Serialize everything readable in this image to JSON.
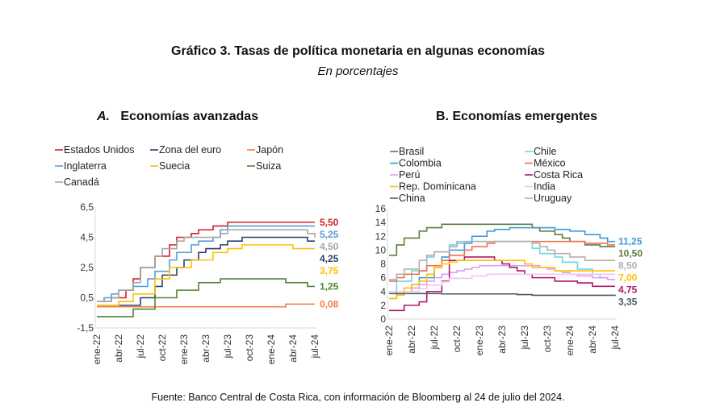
{
  "title": "Gráfico 3. Tasas de política monetaria en algunas economías",
  "subtitle": "En porcentajes",
  "source": "Fuente: Banco Central de Costa Rica, con información de Bloomberg al 24 de julio del 2024.",
  "chart_data": [
    {
      "type": "line",
      "panel": "A.",
      "title": "Economías avanzadas",
      "ylim": [
        -1.5,
        6.5
      ],
      "yticks": [
        "6,5",
        "4,5",
        "2,5",
        "0,5",
        "-1,5"
      ],
      "ytick_values": [
        6.5,
        4.5,
        2.5,
        0.5,
        -1.5
      ],
      "xticks": [
        "ene-22",
        "abr-22",
        "jul-22",
        "oct-22",
        "ene-23",
        "abr-23",
        "jul-23",
        "oct-23",
        "ene-24",
        "abr-24",
        "jul-24"
      ],
      "x": "monthly ene-22 to jul-24",
      "series": [
        {
          "name": "Estados Unidos",
          "color": "#d0212b",
          "end_label": "5,50",
          "values": [
            0.25,
            0.25,
            0.5,
            0.5,
            1,
            1.75,
            2.5,
            2.5,
            3.25,
            3.25,
            4,
            4.5,
            4.5,
            4.75,
            5,
            5,
            5.25,
            5.25,
            5.5,
            5.5,
            5.5,
            5.5,
            5.5,
            5.5,
            5.5,
            5.5,
            5.5,
            5.5,
            5.5,
            5.5,
            5.5
          ]
        },
        {
          "name": "Zona del euro",
          "color": "#2f3f6a",
          "end_label": "4,25",
          "values": [
            0,
            0,
            0,
            0,
            0,
            0,
            0.5,
            0.5,
            1.25,
            2,
            2,
            2.5,
            3,
            3,
            3.5,
            3.75,
            3.75,
            4,
            4.25,
            4.25,
            4.5,
            4.5,
            4.5,
            4.5,
            4.5,
            4.5,
            4.5,
            4.5,
            4.5,
            4.25,
            4.25
          ]
        },
        {
          "name": "Japón",
          "color": "#f08040",
          "end_label": "0,08",
          "values": [
            -0.1,
            -0.1,
            -0.1,
            -0.1,
            -0.1,
            -0.1,
            -0.1,
            -0.1,
            -0.1,
            -0.1,
            -0.1,
            -0.1,
            -0.1,
            -0.1,
            -0.1,
            -0.1,
            -0.1,
            -0.1,
            -0.1,
            -0.1,
            -0.1,
            -0.1,
            -0.1,
            -0.1,
            -0.1,
            -0.1,
            0.08,
            0.08,
            0.08,
            0.08,
            0.08
          ]
        },
        {
          "name": "Inglaterra",
          "color": "#5b9bd5",
          "end_label": "5,25",
          "values": [
            0.25,
            0.5,
            0.75,
            1,
            1,
            1.25,
            1.25,
            1.75,
            2.25,
            2.25,
            3,
            3.5,
            3.5,
            4,
            4.25,
            4.25,
            4.5,
            5,
            5.25,
            5.25,
            5.25,
            5.25,
            5.25,
            5.25,
            5.25,
            5.25,
            5.25,
            5.25,
            5.25,
            5.25,
            5.25
          ]
        },
        {
          "name": "Suecia",
          "color": "#ffc000",
          "end_label": "3,75",
          "values": [
            0,
            0,
            0,
            0.25,
            0.25,
            0.75,
            0.75,
            0.75,
            1.75,
            1.75,
            2.5,
            2.5,
            2.5,
            3,
            3,
            3,
            3.5,
            3.5,
            3.75,
            3.75,
            4,
            4,
            4,
            4,
            4,
            4,
            4,
            3.75,
            3.75,
            3.75,
            3.75
          ]
        },
        {
          "name": "Suiza",
          "color": "#548235",
          "end_label": "1,25",
          "values": [
            -0.75,
            -0.75,
            -0.75,
            -0.75,
            -0.75,
            -0.25,
            -0.25,
            -0.25,
            0.5,
            0.5,
            0.5,
            1,
            1,
            1,
            1.5,
            1.5,
            1.5,
            1.75,
            1.75,
            1.75,
            1.75,
            1.75,
            1.75,
            1.75,
            1.75,
            1.75,
            1.5,
            1.5,
            1.5,
            1.25,
            1.25
          ]
        },
        {
          "name": "Canadá",
          "color": "#a5a5a5",
          "end_label": "4,50",
          "values": [
            0.25,
            0.25,
            0.5,
            1,
            1,
            1.5,
            2.5,
            2.5,
            3.25,
            3.75,
            3.75,
            4.25,
            4.5,
            4.5,
            4.5,
            4.5,
            4.5,
            4.75,
            5,
            5,
            5,
            5,
            5,
            5,
            5,
            5,
            5,
            5,
            5,
            4.75,
            4.5
          ]
        }
      ]
    },
    {
      "type": "line",
      "panel": "B.",
      "title": "Economías emergentes",
      "ylim": [
        0,
        16
      ],
      "yticks": [
        "16",
        "14",
        "12",
        "10",
        "8",
        "6",
        "4",
        "2",
        "0"
      ],
      "ytick_values": [
        16,
        14,
        12,
        10,
        8,
        6,
        4,
        2,
        0
      ],
      "xticks": [
        "ene-22",
        "abr-22",
        "jul-22",
        "oct-22",
        "ene-23",
        "abr-23",
        "jul-23",
        "oct-23",
        "ene-24",
        "abr-24",
        "jul-24"
      ],
      "x": "monthly ene-22 to jul-24",
      "series": [
        {
          "name": "Brasil",
          "color": "#5e7d3c",
          "end_label": "10,50",
          "values": [
            9.25,
            10.75,
            11.75,
            11.75,
            12.75,
            13.25,
            13.25,
            13.75,
            13.75,
            13.75,
            13.75,
            13.75,
            13.75,
            13.75,
            13.75,
            13.75,
            13.75,
            13.75,
            13.75,
            13.25,
            12.75,
            12.75,
            12.25,
            11.75,
            11.25,
            11.25,
            10.75,
            10.75,
            10.5,
            10.5,
            10.5
          ]
        },
        {
          "name": "Chile",
          "color": "#6fd6e6",
          "end_label": "",
          "values": [
            4,
            5.5,
            5.5,
            7,
            7,
            9,
            9.75,
            9.75,
            10.75,
            11.25,
            11.25,
            11.25,
            11.25,
            11.25,
            11.25,
            11.25,
            11.25,
            11.25,
            11.25,
            10.25,
            9.5,
            9.5,
            9,
            8.25,
            8.25,
            7.25,
            7.25,
            6.5,
            6,
            5.75,
            5.75
          ]
        },
        {
          "name": "Colombia",
          "color": "#3a9ad9",
          "end_label": "11,25",
          "values": [
            3,
            4,
            4,
            5,
            6,
            6,
            7.5,
            9,
            10,
            10,
            11,
            12,
            12,
            12.75,
            13,
            13,
            13.25,
            13.25,
            13.25,
            13.25,
            13.25,
            13.25,
            13,
            13,
            12.75,
            12.75,
            12.25,
            12.25,
            11.75,
            11.25,
            11.25
          ]
        },
        {
          "name": "México",
          "color": "#f07050",
          "end_label": "",
          "values": [
            5.5,
            6,
            6.5,
            6.5,
            7,
            7.75,
            7.75,
            8.5,
            9.25,
            9.25,
            10,
            10.5,
            10.5,
            11,
            11.25,
            11.25,
            11.25,
            11.25,
            11.25,
            11.25,
            11.25,
            11.25,
            11.25,
            11.25,
            11.25,
            11.25,
            11,
            11,
            11,
            10.75,
            10.75
          ]
        },
        {
          "name": "Perú",
          "color": "#d9a0f0",
          "end_label": "",
          "values": [
            3,
            3.5,
            4,
            4.5,
            5,
            5.5,
            6,
            6.5,
            6.75,
            7,
            7.25,
            7.5,
            7.75,
            7.75,
            7.75,
            7.75,
            7.75,
            7.75,
            7.75,
            7.75,
            7.5,
            7.25,
            7,
            6.75,
            6.5,
            6.25,
            6.25,
            6,
            6,
            5.75,
            5.75
          ]
        },
        {
          "name": "Costa Rica",
          "color": "#b0176b",
          "end_label": "4,75",
          "values": [
            1.25,
            1.25,
            2,
            2,
            2.5,
            4,
            4,
            5.5,
            8.5,
            8.5,
            9,
            9,
            9,
            9,
            8.5,
            8,
            7.5,
            7,
            6.5,
            6,
            6,
            6,
            5.5,
            5.5,
            5.5,
            5.25,
            5.25,
            4.75,
            4.75,
            4.75,
            4.75
          ]
        },
        {
          "name": "Rep. Dominicana",
          "color": "#ffc000",
          "end_label": "7,00",
          "values": [
            3,
            3.5,
            4.5,
            5,
            5.5,
            6.5,
            7.5,
            8,
            8.25,
            8.5,
            8.5,
            8.5,
            8.5,
            8.5,
            8.5,
            8.5,
            8.5,
            8.5,
            8,
            7.5,
            7.5,
            7.5,
            7,
            7,
            7,
            7,
            7,
            7,
            7,
            7,
            7
          ]
        },
        {
          "name": "India",
          "color": "#f2c4f2",
          "end_label": "",
          "values": [
            4,
            4,
            4,
            4,
            4.4,
            4.9,
            4.9,
            5.4,
            5.9,
            5.9,
            5.9,
            6.25,
            6.25,
            6.5,
            6.5,
            6.5,
            6.5,
            6.5,
            6.5,
            6.5,
            6.5,
            6.5,
            6.5,
            6.5,
            6.5,
            6.5,
            6.5,
            6.5,
            6.5,
            6.5,
            6.5
          ]
        },
        {
          "name": "China",
          "color": "#4a5a60",
          "end_label": "3,35",
          "values": [
            3.7,
            3.7,
            3.7,
            3.7,
            3.7,
            3.7,
            3.7,
            3.65,
            3.65,
            3.65,
            3.65,
            3.65,
            3.65,
            3.65,
            3.65,
            3.65,
            3.65,
            3.55,
            3.55,
            3.45,
            3.45,
            3.45,
            3.45,
            3.45,
            3.45,
            3.45,
            3.45,
            3.45,
            3.45,
            3.45,
            3.35
          ]
        },
        {
          "name": "Uruguay",
          "color": "#b0b0b0",
          "end_label": "8,50",
          "values": [
            5.75,
            6.5,
            7.25,
            7.25,
            8.5,
            9.25,
            9.75,
            9.75,
            10.5,
            11,
            11.25,
            11.25,
            11.25,
            11.25,
            11.25,
            11.25,
            11.25,
            11.25,
            11.25,
            11,
            10.5,
            10,
            9.5,
            9.5,
            9,
            9,
            8.5,
            8.5,
            8.5,
            8.5,
            8.5
          ]
        }
      ]
    }
  ]
}
